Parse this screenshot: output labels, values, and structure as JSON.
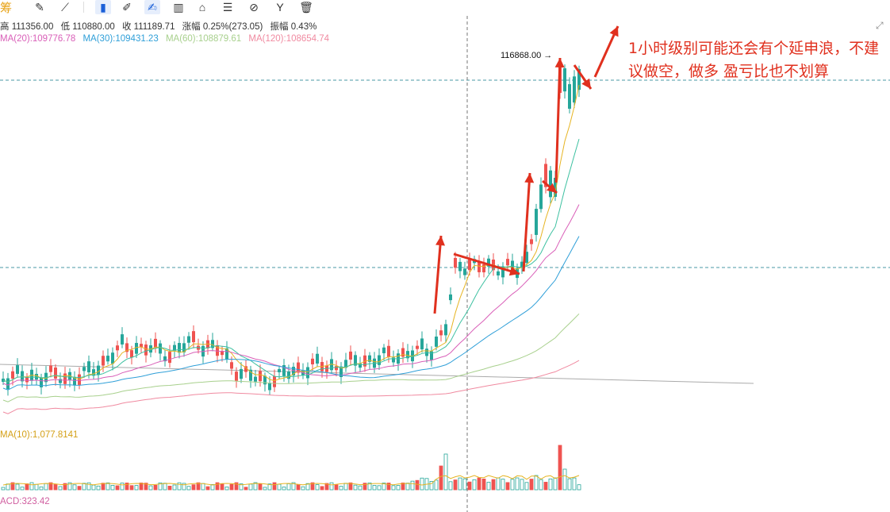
{
  "toolbar": {
    "trading_label": "筹",
    "tools": [
      {
        "name": "note-tool-icon",
        "glyph": "✎"
      },
      {
        "name": "draw-tool-icon",
        "glyph": "⟋"
      },
      {
        "name": "bookmark-icon",
        "glyph": "▮",
        "active": true
      },
      {
        "name": "ruler-icon",
        "glyph": "✐"
      },
      {
        "name": "brush-icon",
        "glyph": "✍",
        "active": true
      },
      {
        "name": "candle-type-icon",
        "glyph": "▥"
      },
      {
        "name": "indicator-icon",
        "glyph": "⌂"
      },
      {
        "name": "template-icon",
        "glyph": "☰"
      },
      {
        "name": "link-icon",
        "glyph": "⊘"
      },
      {
        "name": "filter-icon",
        "glyph": "Y"
      },
      {
        "name": "trash-icon",
        "glyph": "🗑"
      }
    ]
  },
  "ohlc": {
    "high_text": "高 111356.00",
    "low_text": "低 110880.00",
    "close_text": "收 111189.71",
    "change_text": "涨幅 0.25%(273.05)",
    "amplitude_text": "振幅 0.43%"
  },
  "ma": {
    "ma20_text": "MA(20):109776.78",
    "ma30_text": "MA(30):109431.23",
    "ma60_text": "MA(60):108879.61",
    "ma120_text": "MA(120):108654.74",
    "colors": {
      "ma5": "#e6b422",
      "ma10": "#3cc0a0",
      "ma20": "#d95fb8",
      "ma30": "#2f9fd8",
      "ma60": "#a8d08d",
      "ma120": "#f08aa0"
    }
  },
  "peak_label": "116868.00 →",
  "annotation": "1小时级别可能还会有个延申浪，不建议做空，做多 盈亏比也不划算",
  "volume": {
    "label": "MA(10):1,077.8141"
  },
  "macd": {
    "label": "ACD:323.42"
  },
  "colors": {
    "up": "#26a69a",
    "down": "#ef5350",
    "annotation": "#e0301e",
    "crosshair": "#888888",
    "dash_line": "#4a9aa6"
  },
  "fullscreen_icon": "⤢"
}
